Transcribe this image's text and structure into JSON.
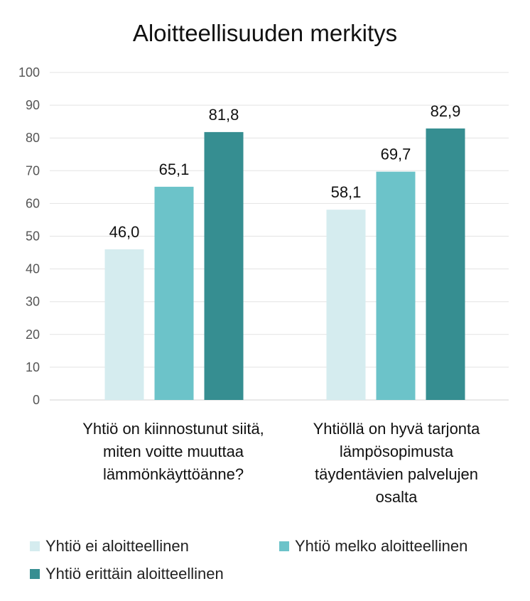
{
  "chart_data": {
    "type": "bar",
    "title": "Aloitteellisuuden merkitys",
    "categories": [
      [
        "Yhtiö on kiinnostunut siitä,",
        "miten voitte muuttaa",
        "lämmönkäyttöänne?"
      ],
      [
        "Yhtiöllä on hyvä tarjonta",
        "lämpösopimusta",
        "täydentävien palvelujen",
        "osalta"
      ]
    ],
    "series": [
      {
        "name": "Yhtiö ei aloitteellinen",
        "values": [
          46.0,
          58.1
        ],
        "labels": [
          "46,0",
          "58,1"
        ],
        "color": "#d5ecef"
      },
      {
        "name": "Yhtiö melko aloitteellinen",
        "values": [
          65.1,
          69.7
        ],
        "labels": [
          "65,1",
          "69,7"
        ],
        "color": "#6cc3c9"
      },
      {
        "name": "Yhtiö erittäin aloitteellinen",
        "values": [
          81.8,
          82.9
        ],
        "labels": [
          "81,8",
          "82,9"
        ],
        "color": "#368e91"
      }
    ],
    "ylim": [
      0,
      100
    ],
    "yticks": [
      "0",
      "10",
      "20",
      "30",
      "40",
      "50",
      "60",
      "70",
      "80",
      "90",
      "100"
    ],
    "grid": true,
    "legend_position": "bottom"
  }
}
